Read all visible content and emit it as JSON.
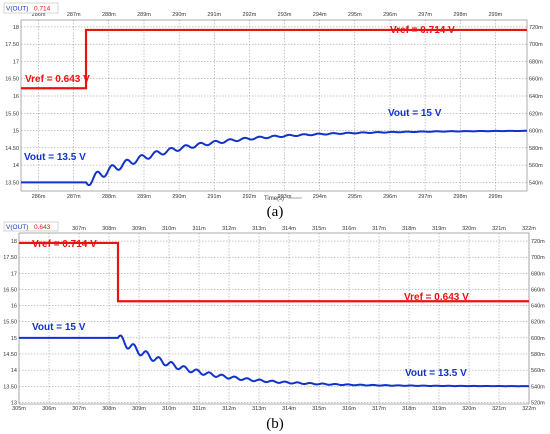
{
  "chart_data": [
    {
      "type": "line",
      "panel_label": "(a)",
      "legend_entries": [
        "V(OUT)",
        "0.714"
      ],
      "xlabel": "Time(s)",
      "x_tick_labels": [
        "286m",
        "287m",
        "288m",
        "289m",
        "290m",
        "291m",
        "292m",
        "293m",
        "294m",
        "295m",
        "296m",
        "297m",
        "298m",
        "299m"
      ],
      "x_ticks": [
        286,
        287,
        288,
        289,
        290,
        291,
        292,
        293,
        294,
        295,
        296,
        297,
        298,
        299
      ],
      "xlim": [
        285.5,
        299.9
      ],
      "left_tick_labels": [
        "18",
        "17.50",
        "17",
        "16.50",
        "16",
        "15.50",
        "15",
        "14.50",
        "14",
        "13.50"
      ],
      "left_ticks": [
        18,
        17.5,
        17,
        16.5,
        16,
        15.5,
        15,
        14.5,
        14,
        13.5
      ],
      "left_ylim": [
        13.25,
        18.2
      ],
      "right_tick_labels": [
        "720m",
        "700m",
        "680m",
        "660m",
        "640m",
        "620m",
        "600m",
        "580m",
        "560m",
        "540m"
      ],
      "grid": true,
      "annotations": {
        "vref_before": "Vref = 0.643 V",
        "vref_after": "Vref = 0.714 V",
        "vout_before": "Vout = 13.5 V",
        "vout_after": "Vout = 15 V"
      },
      "series": [
        {
          "name": "Vref",
          "color": "#ee1111",
          "x": [
            285.5,
            287.35,
            287.35,
            299.9
          ],
          "values": [
            0.643,
            0.643,
            0.714,
            0.714
          ]
        },
        {
          "name": "Vout",
          "color": "#1133cc",
          "step_time": 287.35,
          "before": 13.5,
          "after": 15,
          "tau": 2.5,
          "ripple": 0.14,
          "ripple_period": 0.42
        }
      ]
    },
    {
      "type": "line",
      "panel_label": "(b)",
      "legend_entries": [
        "V(OUT)",
        "0.643"
      ],
      "x_tick_labels": [
        "305m",
        "306m",
        "307m",
        "308m",
        "309m",
        "310m",
        "311m",
        "312m",
        "313m",
        "314m",
        "315m",
        "316m",
        "317m",
        "318m",
        "319m",
        "320m",
        "321m",
        "322m"
      ],
      "x_ticks": [
        305,
        306,
        307,
        308,
        309,
        310,
        311,
        312,
        313,
        314,
        315,
        316,
        317,
        318,
        319,
        320,
        321,
        322
      ],
      "xlim": [
        305,
        322
      ],
      "left_tick_labels": [
        "18",
        "17.50",
        "17",
        "16.50",
        "16",
        "15.50",
        "15",
        "14.50",
        "14",
        "13.50",
        "13"
      ],
      "left_ticks": [
        18,
        17.5,
        17,
        16.5,
        16,
        15.5,
        15,
        14.5,
        14,
        13.5,
        13
      ],
      "left_ylim": [
        12.95,
        18.25
      ],
      "right_tick_labels": [
        "720m",
        "700m",
        "680m",
        "660m",
        "640m",
        "620m",
        "600m",
        "580m",
        "560m",
        "540m",
        "520m"
      ],
      "grid": true,
      "annotations": {
        "vref_before": "Vref = 0.714 V",
        "vref_after": "Vref = 0.643 V",
        "vout_before": "Vout = 15 V",
        "vout_after": "Vout = 13.5 V"
      },
      "series": [
        {
          "name": "Vref",
          "color": "#ee1111",
          "x": [
            305,
            308.3,
            308.3,
            322
          ],
          "values": [
            0.714,
            0.714,
            0.643,
            0.643
          ]
        },
        {
          "name": "Vout",
          "color": "#1133cc",
          "step_time": 308.3,
          "before": 15,
          "after": 13.5,
          "tau": 2.2,
          "ripple": 0.14,
          "ripple_period": 0.42
        }
      ]
    }
  ]
}
